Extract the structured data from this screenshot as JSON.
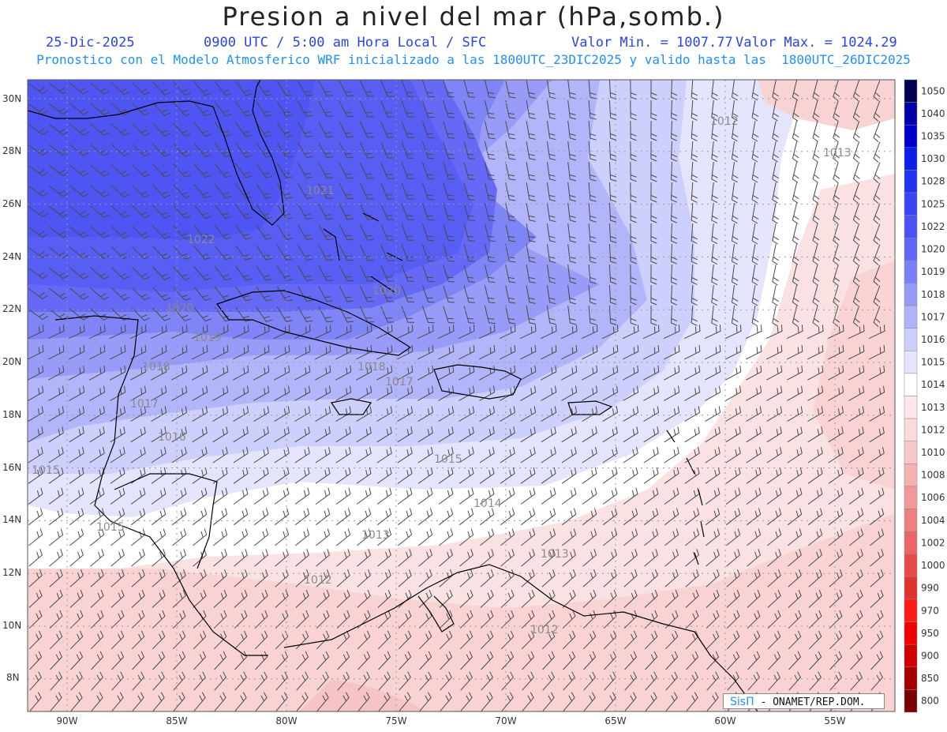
{
  "header": {
    "title": "Presion a nivel del mar (hPa,somb.)",
    "date": "25-Dic-2025",
    "time": "0900 UTC / 5:00 am Hora Local / SFC",
    "min_label": "Valor Min. = 1007.77",
    "max_label": "Valor Max. = 1024.29",
    "description": "Pronostico con el Modelo Atmosferico WRF inicializado a las 1800UTC_23DIC2025 y valido hasta las  1800UTC_26DIC2025"
  },
  "map": {
    "lat_labels": [
      "30N",
      "28N",
      "26N",
      "24N",
      "22N",
      "20N",
      "18N",
      "16N",
      "14N",
      "12N",
      "10N",
      "8N"
    ],
    "lon_labels": [
      "90W",
      "85W",
      "80W",
      "75W",
      "70W",
      "65W",
      "60W",
      "55W"
    ],
    "contour_labels": [
      "1022",
      "1021",
      "1020",
      "1020",
      "1019",
      "1018",
      "1018",
      "1017",
      "1017",
      "1016",
      "1015",
      "1014",
      "1013",
      "1013",
      "1013",
      "1012",
      "1012",
      "1012",
      "1015",
      "1015"
    ]
  },
  "colorbar": {
    "levels": [
      "1050",
      "1040",
      "1035",
      "1030",
      "1028",
      "1025",
      "1022",
      "1020",
      "1019",
      "1018",
      "1017",
      "1016",
      "1015",
      "1014",
      "1013",
      "1012",
      "1010",
      "1008",
      "1006",
      "1004",
      "1002",
      "1000",
      "990",
      "970",
      "950",
      "900",
      "850",
      "800"
    ],
    "colors": [
      "#00004f",
      "#0000a8",
      "#0000cd",
      "#0a1fe8",
      "#2233f0",
      "#3a44f2",
      "#4a52f4",
      "#5f66f5",
      "#7a80f7",
      "#9599f8",
      "#b0b3fa",
      "#cbcdfc",
      "#e3e4fd",
      "#ffffff",
      "#fde9e9",
      "#fadada",
      "#f7c6c6",
      "#f5b0b0",
      "#f19999",
      "#ee8080",
      "#ea6666",
      "#e64c4c",
      "#e23131",
      "#ff1a1a",
      "#f00000",
      "#d00000",
      "#a50000",
      "#7a0000"
    ]
  },
  "credits": {
    "logo": "SisΠ",
    "text": "- ONAMET/REP.DOM."
  }
}
